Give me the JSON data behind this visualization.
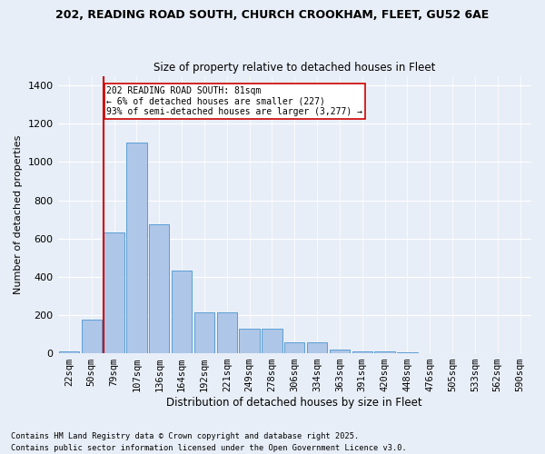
{
  "title1": "202, READING ROAD SOUTH, CHURCH CROOKHAM, FLEET, GU52 6AE",
  "title2": "Size of property relative to detached houses in Fleet",
  "xlabel": "Distribution of detached houses by size in Fleet",
  "ylabel": "Number of detached properties",
  "categories": [
    "22sqm",
    "50sqm",
    "79sqm",
    "107sqm",
    "136sqm",
    "164sqm",
    "192sqm",
    "221sqm",
    "249sqm",
    "278sqm",
    "306sqm",
    "334sqm",
    "363sqm",
    "391sqm",
    "420sqm",
    "448sqm",
    "476sqm",
    "505sqm",
    "533sqm",
    "562sqm",
    "590sqm"
  ],
  "values": [
    10,
    175,
    630,
    1100,
    675,
    430,
    215,
    215,
    130,
    130,
    55,
    55,
    20,
    10,
    10,
    5,
    2,
    2,
    1,
    1,
    1
  ],
  "bar_color": "#aec6e8",
  "bar_edge_color": "#5a9fd4",
  "vline_pos": 1.55,
  "annotation_line1": "202 READING ROAD SOUTH: 81sqm",
  "annotation_line2": "← 6% of detached houses are smaller (227)",
  "annotation_line3": "93% of semi-detached houses are larger (3,277) →",
  "vline_color": "#cc0000",
  "annotation_box_color": "#cc0000",
  "background_color": "#e8eef7",
  "plot_bg_color": "#e8eef7",
  "ylim": [
    0,
    1450
  ],
  "yticks": [
    0,
    200,
    400,
    600,
    800,
    1000,
    1200,
    1400
  ],
  "footer1": "Contains HM Land Registry data © Crown copyright and database right 2025.",
  "footer2": "Contains public sector information licensed under the Open Government Licence v3.0."
}
